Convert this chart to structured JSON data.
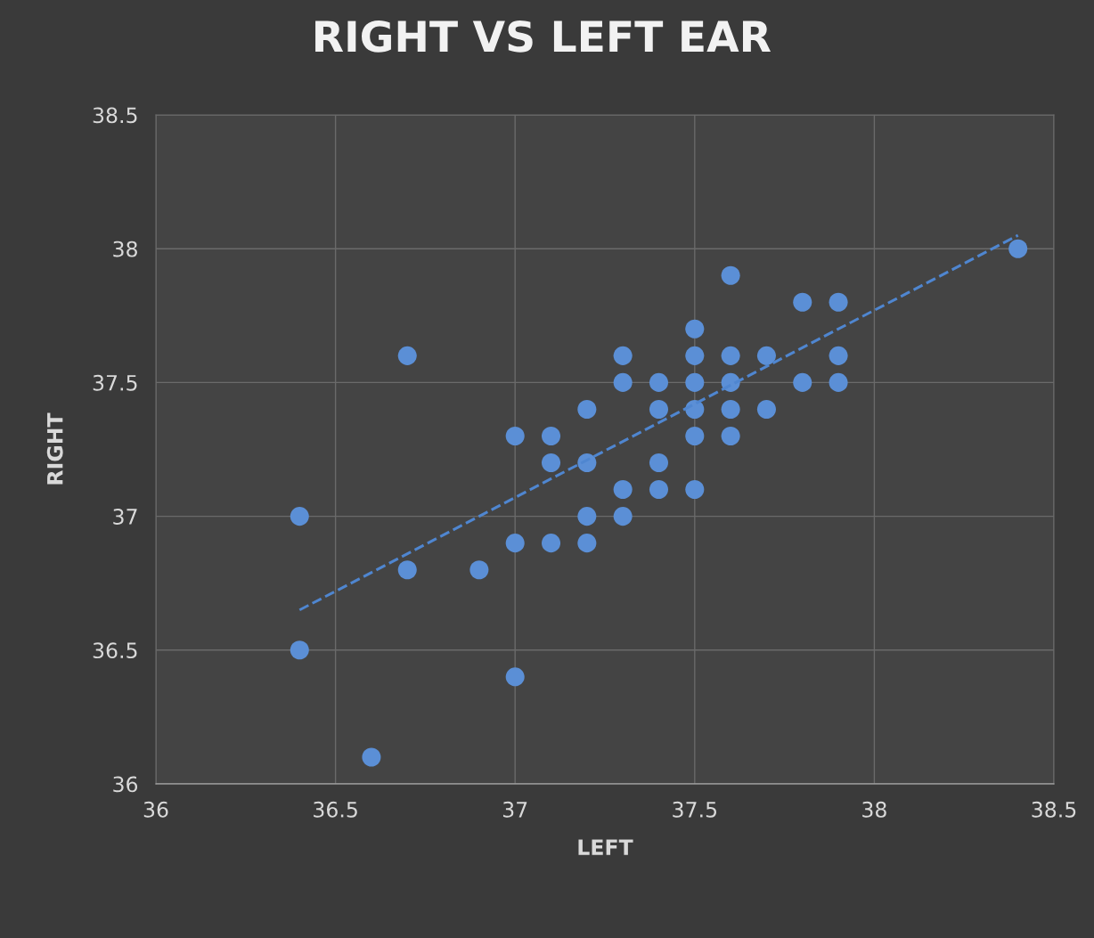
{
  "chart_data": {
    "type": "scatter",
    "title": "RIGHT VS LEFT EAR",
    "xlabel": "LEFT",
    "ylabel": "RIGHT",
    "xlim": [
      36,
      38.5
    ],
    "xticks": [
      36,
      36.5,
      37,
      37.5,
      38,
      38.5
    ],
    "ylim": [
      36,
      38.5
    ],
    "yticks": [
      36,
      36.5,
      37,
      37.5,
      38,
      38.5
    ],
    "grid": true,
    "legend": false,
    "series": [
      {
        "color": "#5b8fd6",
        "marker": "circle",
        "x": [
          36.4,
          36.4,
          36.6,
          36.7,
          36.7,
          36.9,
          37.0,
          37.0,
          37.0,
          37.1,
          37.1,
          37.1,
          37.2,
          37.2,
          37.2,
          37.2,
          37.3,
          37.3,
          37.3,
          37.3,
          37.4,
          37.4,
          37.4,
          37.4,
          37.5,
          37.5,
          37.5,
          37.5,
          37.5,
          37.5,
          37.6,
          37.6,
          37.6,
          37.6,
          37.6,
          37.7,
          37.7,
          37.8,
          37.8,
          37.9,
          37.9,
          37.9,
          38.4
        ],
        "values": [
          37.0,
          36.5,
          36.1,
          37.6,
          36.8,
          36.8,
          37.3,
          36.9,
          36.4,
          37.3,
          37.2,
          36.9,
          37.4,
          37.2,
          37.0,
          36.9,
          37.6,
          37.5,
          37.1,
          37.0,
          37.5,
          37.4,
          37.2,
          37.1,
          37.7,
          37.6,
          37.5,
          37.4,
          37.3,
          37.1,
          37.9,
          37.6,
          37.5,
          37.4,
          37.3,
          37.6,
          37.4,
          37.8,
          37.5,
          37.8,
          37.6,
          37.5,
          38.0
        ]
      },
      {
        "type": "line",
        "color": "#4f86d0",
        "line_style": "dashed",
        "marker": "none",
        "x": [
          36.4,
          38.4
        ],
        "values": [
          36.65,
          38.05
        ]
      }
    ]
  }
}
